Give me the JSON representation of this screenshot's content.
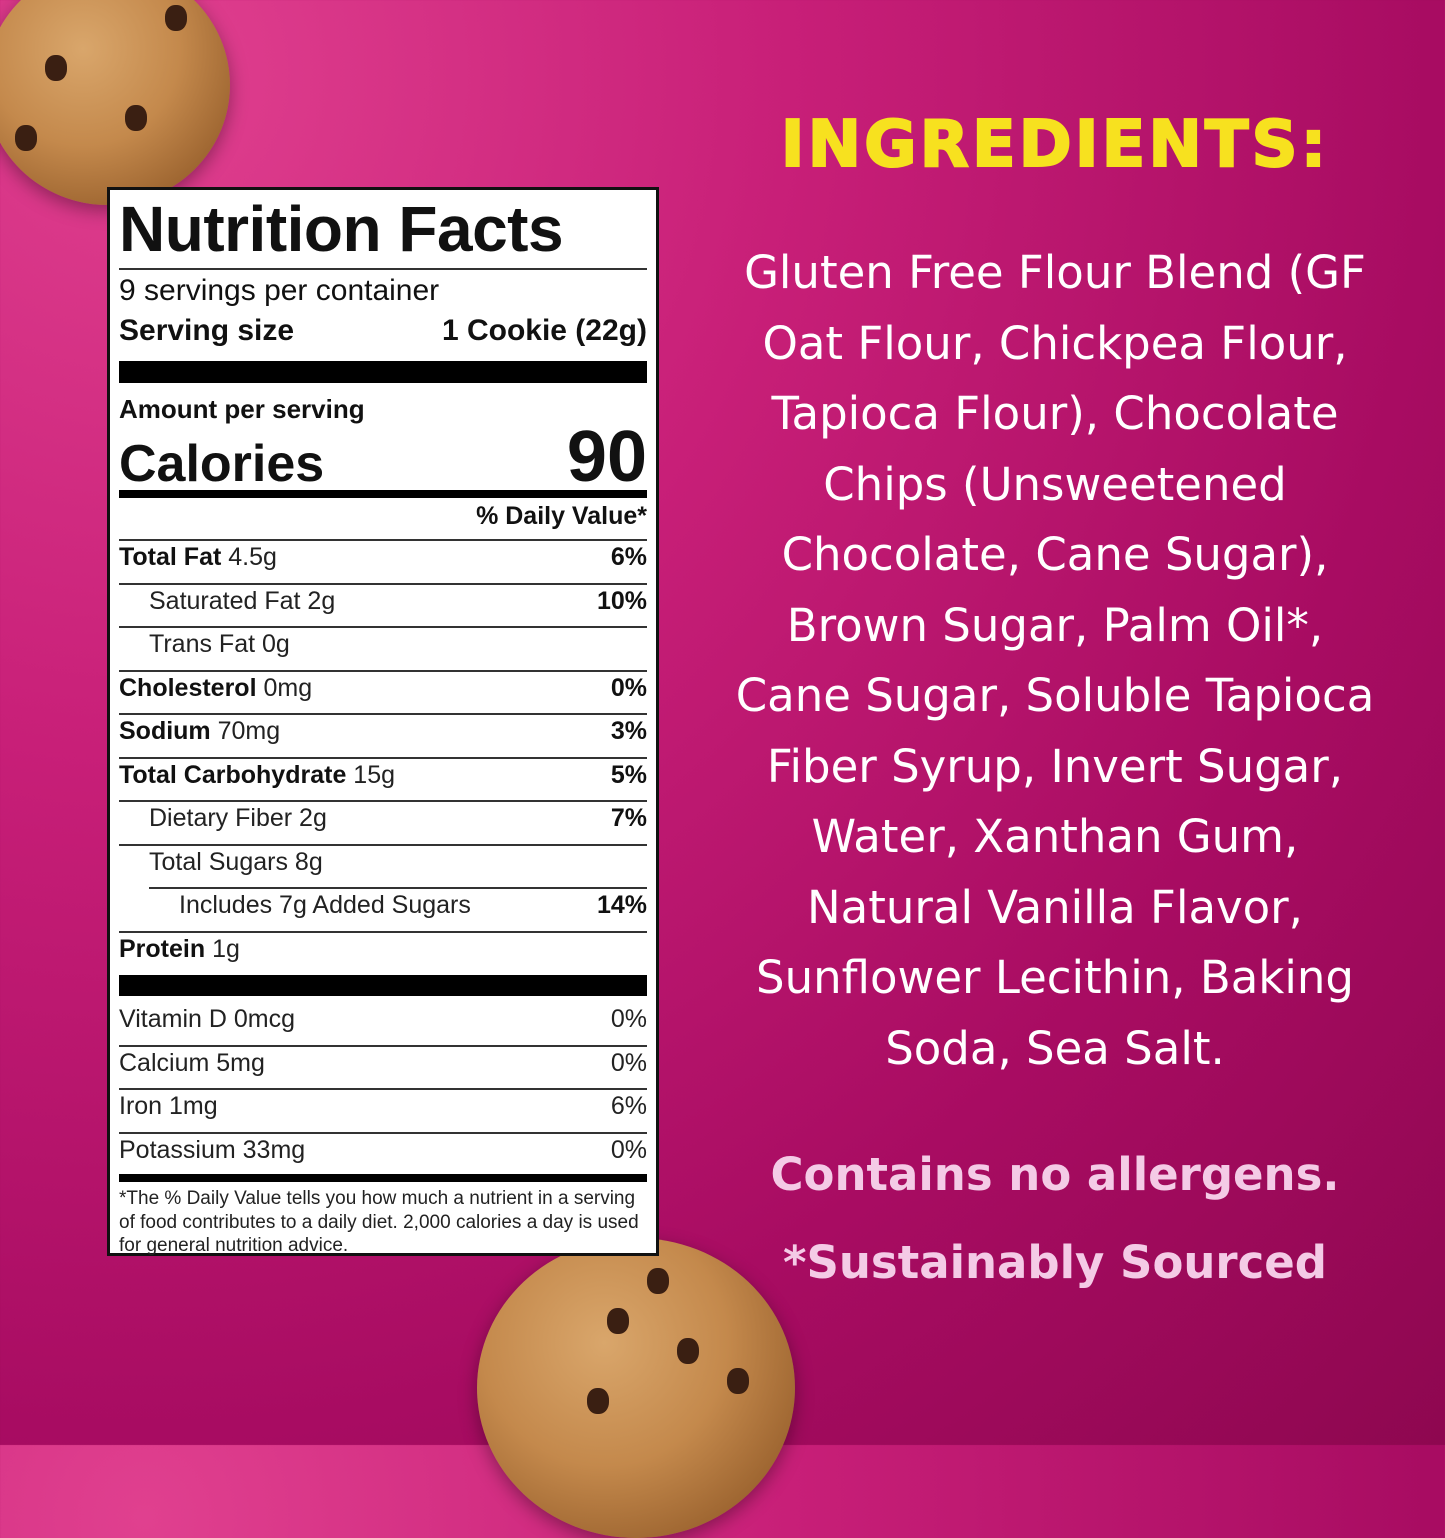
{
  "colors": {
    "title": "#f7e11f",
    "ingredients_text": "#ffffff",
    "notes": "#f4cbe6",
    "background": "#b8126c"
  },
  "nutrition": {
    "title": "Nutrition Facts",
    "servings": "9 servings per container",
    "serving_size_label": "Serving size",
    "serving_size_value": "1 Cookie (22g)",
    "amount_per_serving": "Amount per serving",
    "calories_label": "Calories",
    "calories_value": "90",
    "dv_header": "% Daily Value*",
    "rows": [
      {
        "bold": "Total Fat",
        "value": " 4.5g",
        "dv": "6%",
        "indent": 0
      },
      {
        "bold": "",
        "value": "Saturated Fat 2g",
        "dv": "10%",
        "indent": 1
      },
      {
        "bold": "",
        "value": "Trans Fat 0g",
        "dv": "",
        "indent": 1
      },
      {
        "bold": "Cholesterol",
        "value": " 0mg",
        "dv": "0%",
        "indent": 0
      },
      {
        "bold": "Sodium",
        "value": " 70mg",
        "dv": "3%",
        "indent": 0
      },
      {
        "bold": "Total Carbohydrate",
        "value": " 15g",
        "dv": "5%",
        "indent": 0
      },
      {
        "bold": "",
        "value": "Dietary Fiber 2g",
        "dv": "7%",
        "indent": 1
      },
      {
        "bold": "",
        "value": "Total Sugars 8g",
        "dv": "",
        "indent": 1
      },
      {
        "bold": "",
        "value": "Includes 7g Added Sugars",
        "dv": "14%",
        "indent": 2
      },
      {
        "bold": "Protein",
        "value": " 1g",
        "dv": "",
        "indent": 0
      }
    ],
    "vitamins": [
      {
        "name": "Vitamin D 0mcg",
        "dv": "0%"
      },
      {
        "name": "Calcium 5mg",
        "dv": "0%"
      },
      {
        "name": "Iron 1mg",
        "dv": "6%"
      },
      {
        "name": "Potassium 33mg",
        "dv": "0%"
      }
    ],
    "footnote": "*The % Daily Value tells you how much a nutrient in a serving of food contributes to a daily diet. 2,000 calories a day is used for general nutrition advice."
  },
  "ingredients": {
    "title": "INGREDIENTS:",
    "lines": [
      "Gluten Free Flour Blend (GF",
      "Oat Flour, Chickpea Flour,",
      "Tapioca Flour), Chocolate",
      "Chips (Unsweetened",
      "Chocolate, Cane Sugar),",
      "Brown Sugar, Palm Oil*,",
      "Cane Sugar, Soluble Tapioca",
      "Fiber Syrup, Invert Sugar,",
      "Water, Xanthan Gum,",
      "Natural Vanilla Flavor,",
      "Sunflower Lecithin, Baking",
      "Soda, Sea Salt."
    ],
    "allergens": "Contains no allergens.",
    "sourcing": "*Sustainably Sourced"
  }
}
